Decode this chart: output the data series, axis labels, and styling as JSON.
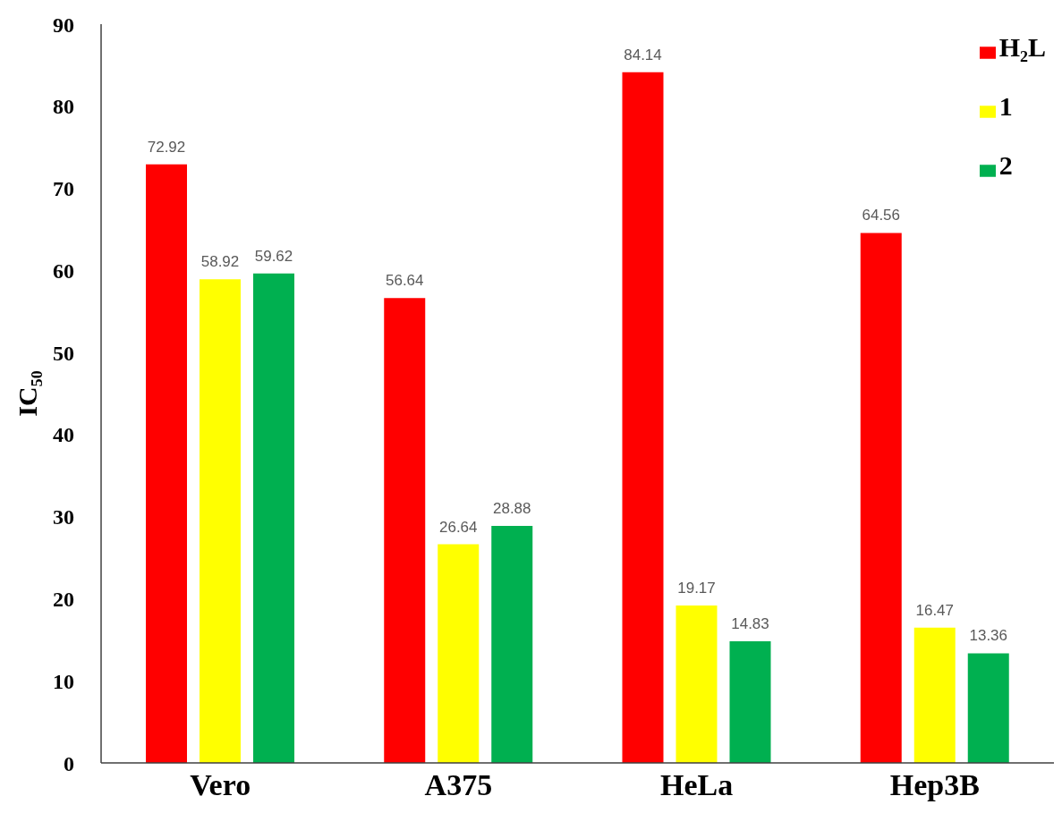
{
  "chart_data": {
    "type": "bar",
    "ylabel": "IC₅₀",
    "categories": [
      "Vero",
      "A375",
      "HeLa",
      "Hep3B"
    ],
    "series": [
      {
        "name": "H₂L",
        "color": "#ff0000",
        "values": [
          72.92,
          56.64,
          84.14,
          64.56
        ]
      },
      {
        "name": "1",
        "color": "#ffff00",
        "values": [
          58.92,
          26.64,
          19.17,
          16.47
        ]
      },
      {
        "name": "2",
        "color": "#00b050",
        "values": [
          59.62,
          28.88,
          14.83,
          13.36
        ]
      }
    ],
    "ylim": [
      0,
      90
    ],
    "yticks": [
      0,
      10,
      20,
      30,
      40,
      50,
      60,
      70,
      80,
      90
    ],
    "data_labels": true,
    "legend": "top right"
  }
}
